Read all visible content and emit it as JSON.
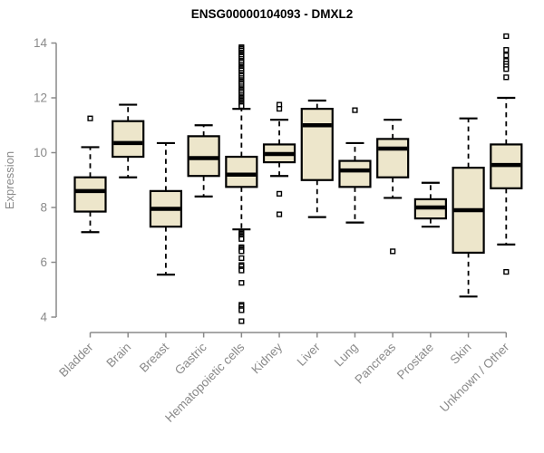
{
  "chart_data": {
    "type": "boxplot",
    "title": "ENSG00000104093 - DMXL2",
    "ylabel": "Expression",
    "xlabel": "",
    "ylim": [
      4,
      14
    ],
    "yticks": [
      4,
      6,
      8,
      10,
      12,
      14
    ],
    "grid": false,
    "legend": "none",
    "colors": {
      "box_fill": "#EDE6CB",
      "box_border": "#000000",
      "median": "#000000",
      "whisker": "#000000",
      "outlier_fill": "#ffffff",
      "axis": "#8a8a8a",
      "label": "#8a8a8a",
      "title": "#000000"
    },
    "categories": [
      "Bladder",
      "Brain",
      "Breast",
      "Gastric",
      "Hematopoietic cells",
      "Kidney",
      "Liver",
      "Lung",
      "Pancreas",
      "Prostate",
      "Skin",
      "Unknown / Other"
    ],
    "series": [
      {
        "label": "Bladder",
        "low": 7.1,
        "q1": 7.85,
        "median": 8.6,
        "q3": 9.1,
        "high": 10.2,
        "outliers": [
          11.25
        ]
      },
      {
        "label": "Brain",
        "low": 9.1,
        "q1": 9.85,
        "median": 10.35,
        "q3": 11.15,
        "high": 11.75,
        "outliers": []
      },
      {
        "label": "Breast",
        "low": 5.55,
        "q1": 7.3,
        "median": 7.95,
        "q3": 8.6,
        "high": 10.35,
        "outliers": []
      },
      {
        "label": "Gastric",
        "low": 8.4,
        "q1": 9.15,
        "median": 9.8,
        "q3": 10.6,
        "high": 11.0,
        "outliers": []
      },
      {
        "label": "Hematopoietic cells",
        "low": 7.2,
        "q1": 8.75,
        "median": 9.2,
        "q3": 9.85,
        "high": 11.6,
        "outliers": [
          13.85,
          13.8,
          13.78,
          13.72,
          13.65,
          13.6,
          13.55,
          13.5,
          13.42,
          13.35,
          13.3,
          13.22,
          13.15,
          13.1,
          13.05,
          13.0,
          12.92,
          12.85,
          12.8,
          12.72,
          12.65,
          12.6,
          12.55,
          12.5,
          12.42,
          12.35,
          12.3,
          12.25,
          12.2,
          12.12,
          12.05,
          12.0,
          11.95,
          11.9,
          11.85,
          11.8,
          11.75,
          11.7,
          7.1,
          7.05,
          7.0,
          6.95,
          6.9,
          6.85,
          6.55,
          6.5,
          6.45,
          6.4,
          6.15,
          5.9,
          5.85,
          5.75,
          5.7,
          5.25,
          4.45,
          4.4,
          4.3,
          4.25,
          3.85
        ]
      },
      {
        "label": "Kidney",
        "low": 9.15,
        "q1": 9.65,
        "median": 9.95,
        "q3": 10.3,
        "high": 11.2,
        "outliers": [
          11.75,
          11.6,
          8.5,
          7.75
        ]
      },
      {
        "label": "Liver",
        "low": 7.65,
        "q1": 9.0,
        "median": 11.0,
        "q3": 11.6,
        "high": 11.9,
        "outliers": []
      },
      {
        "label": "Lung",
        "low": 7.45,
        "q1": 8.75,
        "median": 9.35,
        "q3": 9.7,
        "high": 10.35,
        "outliers": [
          11.55
        ]
      },
      {
        "label": "Pancreas",
        "low": 8.35,
        "q1": 9.1,
        "median": 10.15,
        "q3": 10.5,
        "high": 11.2,
        "outliers": [
          6.4
        ]
      },
      {
        "label": "Prostate",
        "low": 7.3,
        "q1": 7.6,
        "median": 8.0,
        "q3": 8.3,
        "high": 8.9,
        "outliers": []
      },
      {
        "label": "Skin",
        "low": 4.75,
        "q1": 6.35,
        "median": 7.9,
        "q3": 9.45,
        "high": 11.25,
        "outliers": []
      },
      {
        "label": "Unknown / Other",
        "low": 6.65,
        "q1": 8.7,
        "median": 9.55,
        "q3": 10.3,
        "high": 12.0,
        "outliers": [
          14.25,
          13.75,
          13.55,
          13.35,
          13.25,
          13.15,
          13.05,
          12.75,
          5.65
        ]
      }
    ]
  }
}
